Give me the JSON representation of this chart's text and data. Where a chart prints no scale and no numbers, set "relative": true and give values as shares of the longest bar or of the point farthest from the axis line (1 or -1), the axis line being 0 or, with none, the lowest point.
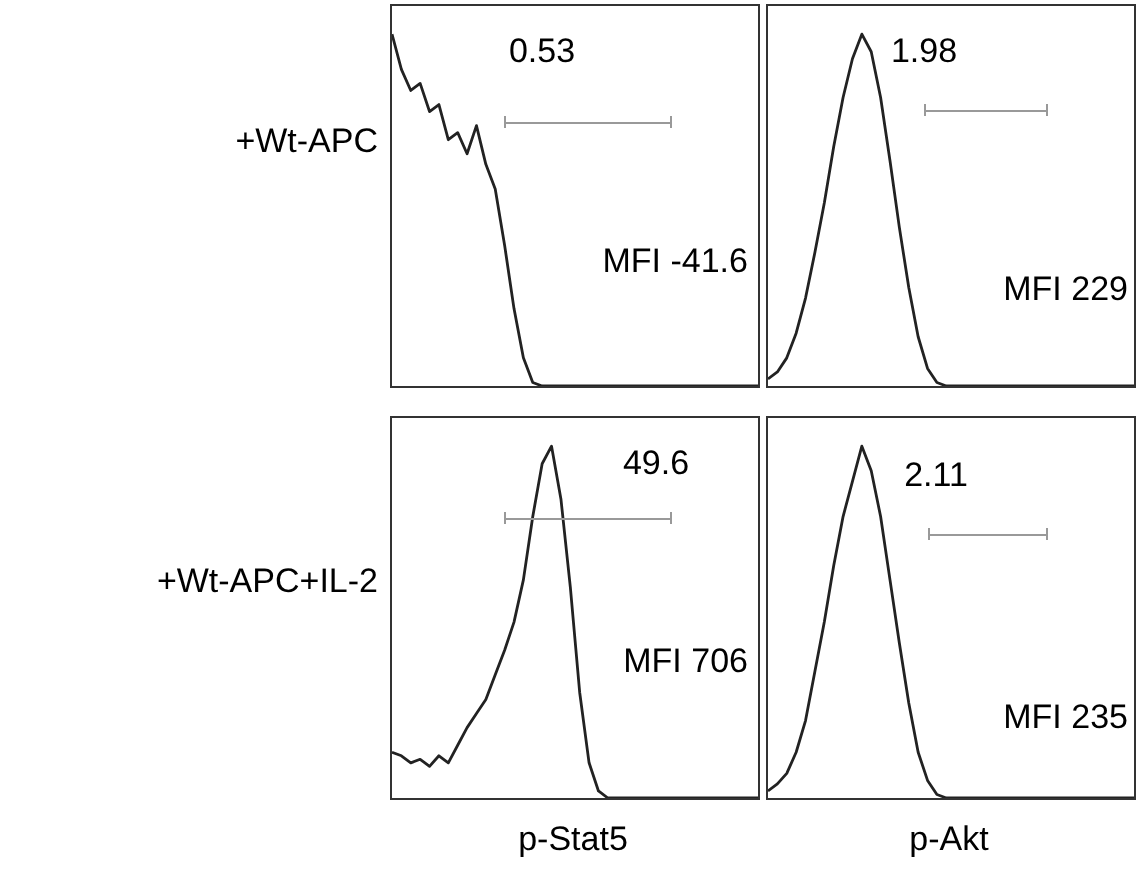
{
  "chart_data": [
    {
      "type": "line",
      "relative": true,
      "tick_labels": false,
      "ylabel": "+Wt-APC",
      "color": "#222222",
      "annotations": [
        "0.53",
        "MFI -41.6"
      ],
      "categories": [
        null,
        null,
        null,
        null,
        null,
        null,
        null,
        null,
        null,
        null,
        null,
        null,
        null,
        null,
        null,
        null,
        null,
        null,
        null,
        null,
        null,
        null,
        null,
        null,
        null,
        null,
        null,
        null,
        null,
        null,
        null,
        null,
        null,
        null,
        null,
        null,
        null,
        null,
        null,
        null
      ],
      "values": [
        1.0,
        0.9,
        0.84,
        0.86,
        0.78,
        0.8,
        0.7,
        0.72,
        0.66,
        0.74,
        0.63,
        0.56,
        0.4,
        0.22,
        0.08,
        0.01,
        0,
        0,
        0,
        0,
        0,
        0,
        0,
        0,
        0,
        0,
        0,
        0,
        0,
        0,
        0,
        0,
        0,
        0,
        0,
        0,
        0,
        0,
        0,
        0
      ]
    },
    {
      "type": "line",
      "relative": true,
      "tick_labels": false,
      "color": "#222222",
      "annotations": [
        "1.98",
        "MFI 229"
      ],
      "categories": [
        null,
        null,
        null,
        null,
        null,
        null,
        null,
        null,
        null,
        null,
        null,
        null,
        null,
        null,
        null,
        null,
        null,
        null,
        null,
        null,
        null,
        null,
        null,
        null,
        null,
        null,
        null,
        null,
        null,
        null,
        null,
        null,
        null,
        null,
        null,
        null,
        null,
        null,
        null,
        null
      ],
      "values": [
        0.02,
        0.04,
        0.08,
        0.15,
        0.25,
        0.38,
        0.52,
        0.68,
        0.82,
        0.93,
        1.0,
        0.95,
        0.82,
        0.64,
        0.45,
        0.28,
        0.14,
        0.05,
        0.01,
        0,
        0,
        0,
        0,
        0,
        0,
        0,
        0,
        0,
        0,
        0,
        0,
        0,
        0,
        0,
        0,
        0,
        0,
        0,
        0,
        0
      ]
    },
    {
      "type": "line",
      "relative": true,
      "tick_labels": false,
      "ylabel": "+Wt-APC+IL-2",
      "xlabel": "p-Stat5",
      "color": "#222222",
      "annotations": [
        "49.6",
        "MFI 706"
      ],
      "categories": [
        null,
        null,
        null,
        null,
        null,
        null,
        null,
        null,
        null,
        null,
        null,
        null,
        null,
        null,
        null,
        null,
        null,
        null,
        null,
        null,
        null,
        null,
        null,
        null,
        null,
        null,
        null,
        null,
        null,
        null,
        null,
        null,
        null,
        null,
        null,
        null,
        null,
        null,
        null,
        null
      ],
      "values": [
        0.13,
        0.12,
        0.1,
        0.11,
        0.09,
        0.12,
        0.1,
        0.15,
        0.2,
        0.24,
        0.28,
        0.35,
        0.42,
        0.5,
        0.62,
        0.8,
        0.95,
        1.0,
        0.85,
        0.6,
        0.3,
        0.1,
        0.02,
        0,
        0,
        0,
        0,
        0,
        0,
        0,
        0,
        0,
        0,
        0,
        0,
        0,
        0,
        0,
        0,
        0
      ]
    },
    {
      "type": "line",
      "relative": true,
      "tick_labels": false,
      "xlabel": "p-Akt",
      "color": "#222222",
      "annotations": [
        "2.11",
        "MFI 235"
      ],
      "categories": [
        null,
        null,
        null,
        null,
        null,
        null,
        null,
        null,
        null,
        null,
        null,
        null,
        null,
        null,
        null,
        null,
        null,
        null,
        null,
        null,
        null,
        null,
        null,
        null,
        null,
        null,
        null,
        null,
        null,
        null,
        null,
        null,
        null,
        null,
        null,
        null,
        null,
        null,
        null,
        null
      ],
      "values": [
        0.02,
        0.04,
        0.07,
        0.13,
        0.22,
        0.36,
        0.5,
        0.66,
        0.8,
        0.9,
        1.0,
        0.93,
        0.8,
        0.62,
        0.44,
        0.27,
        0.13,
        0.05,
        0.01,
        0,
        0,
        0,
        0,
        0,
        0,
        0,
        0,
        0,
        0,
        0,
        0,
        0,
        0,
        0,
        0,
        0,
        0,
        0,
        0,
        0
      ]
    }
  ]
}
